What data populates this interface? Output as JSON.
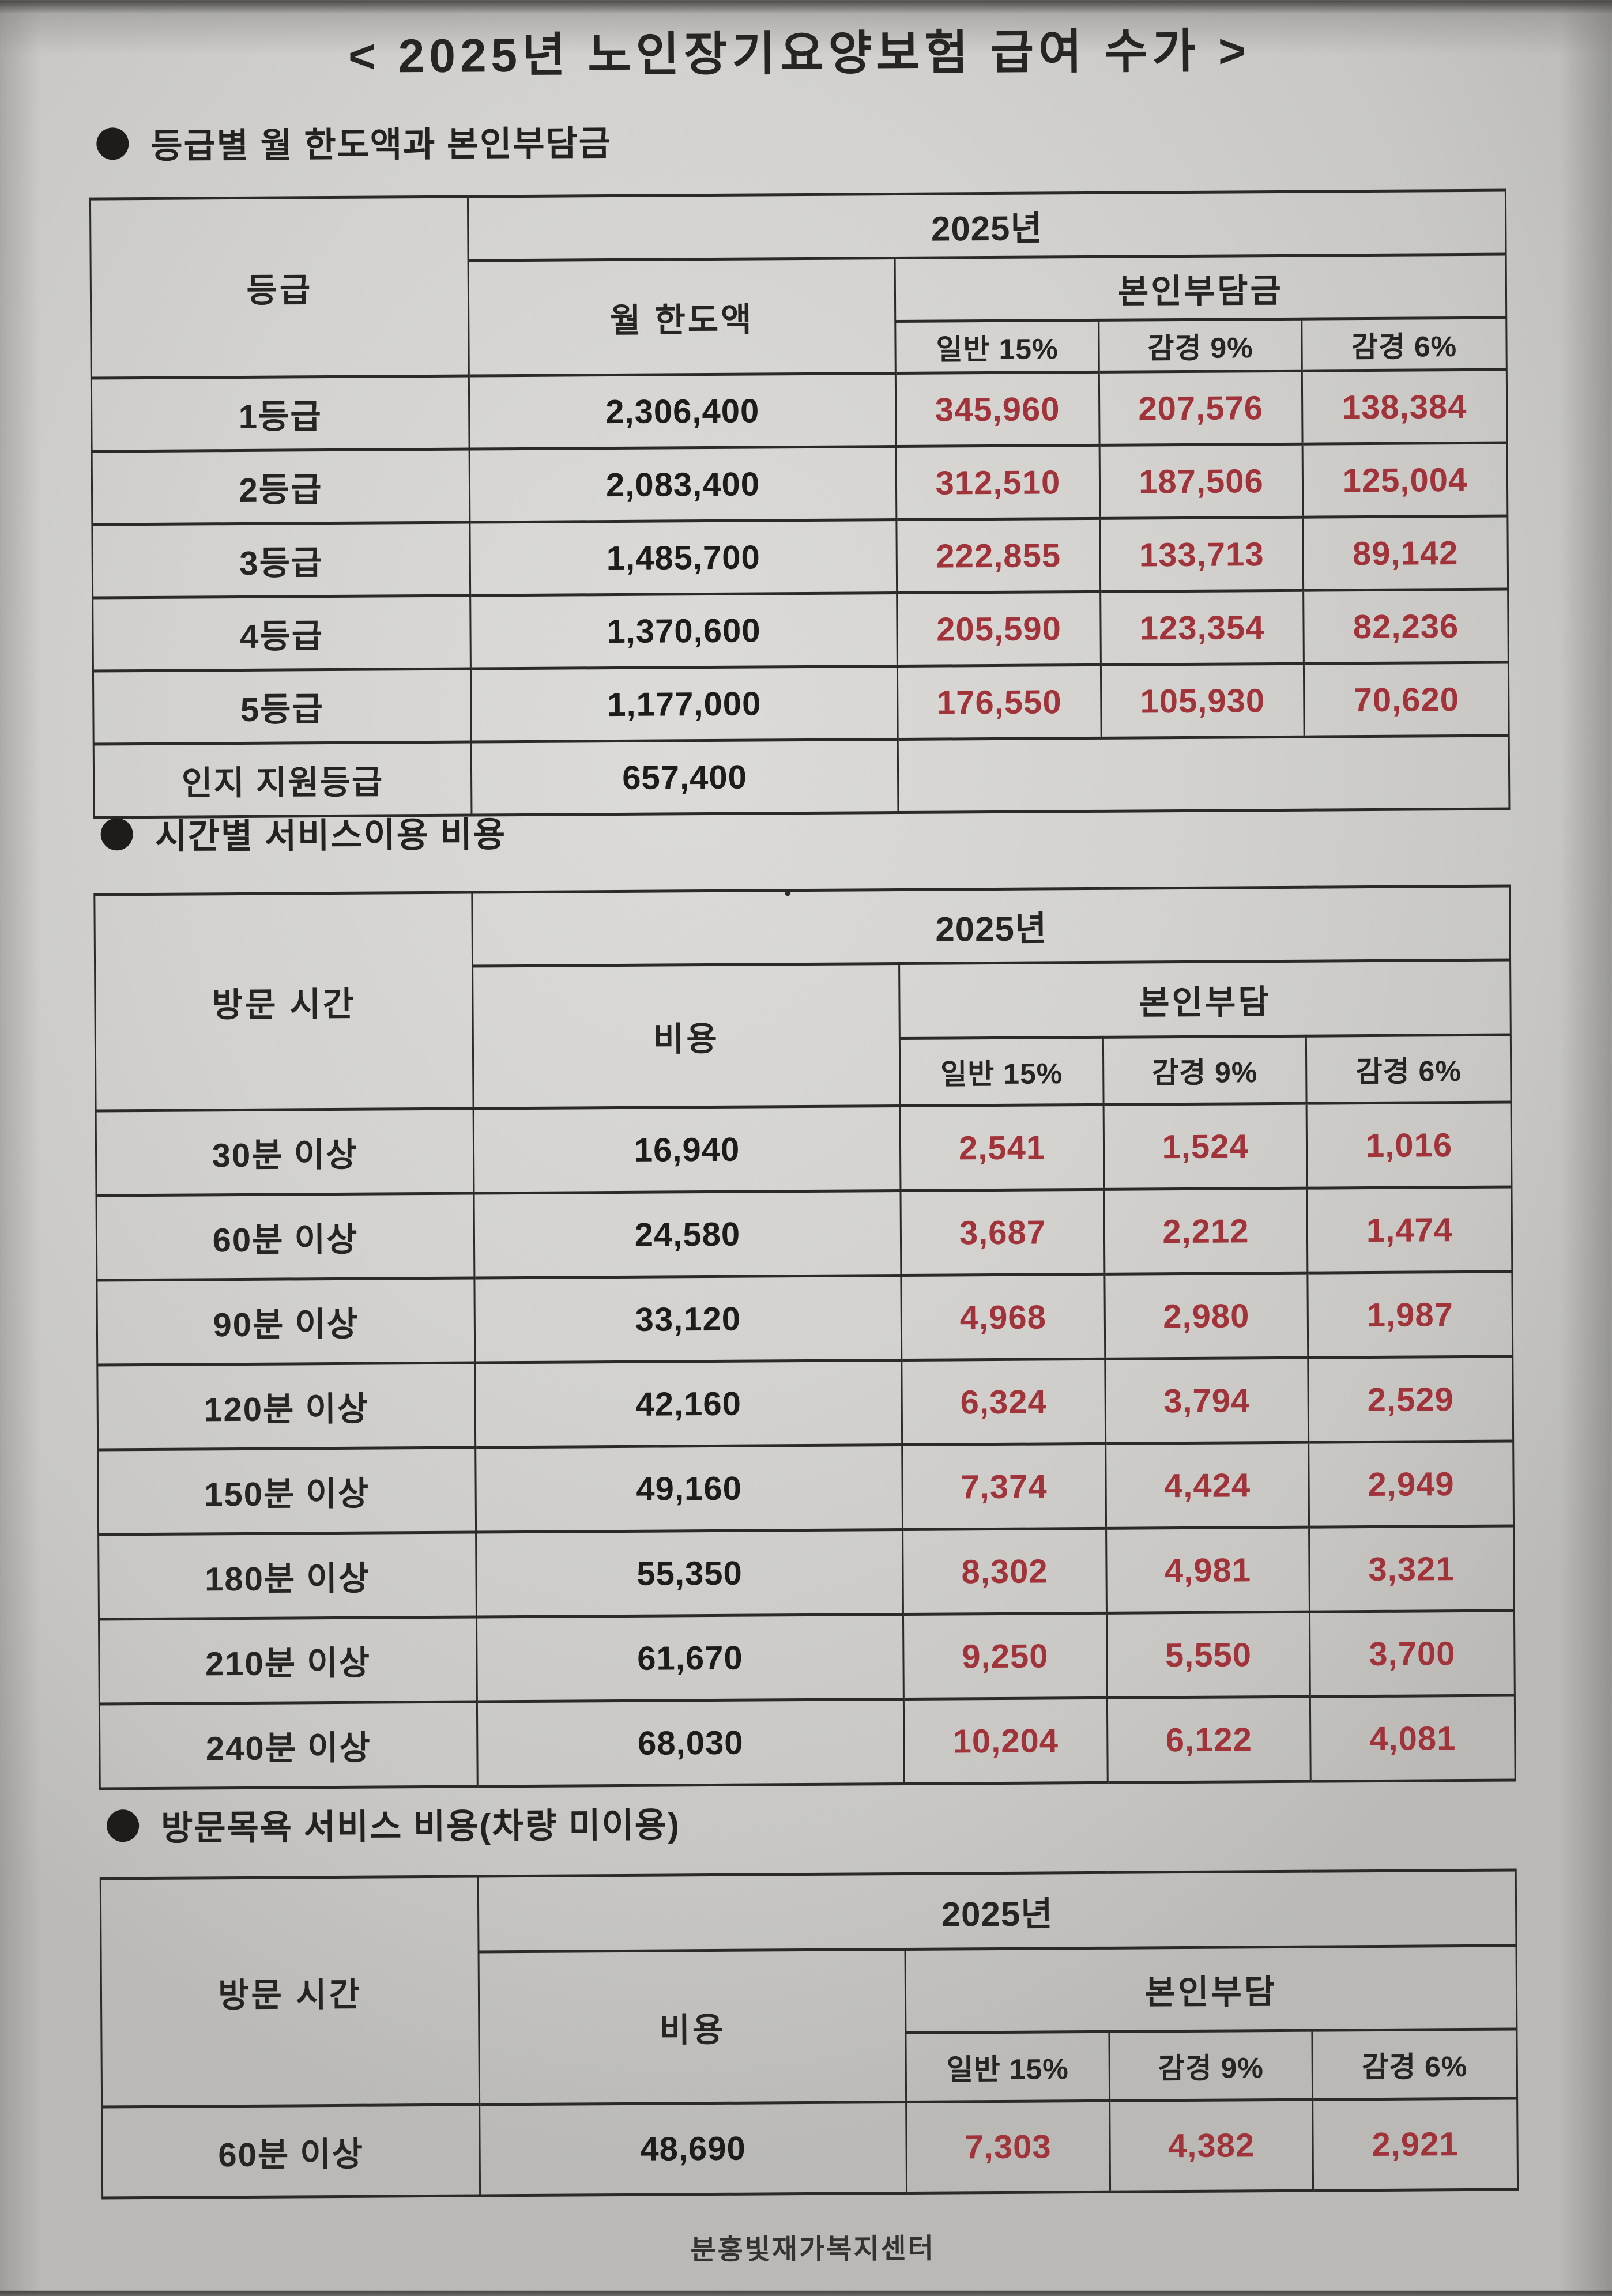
{
  "page": {
    "title": "< 2025년 노인장기요양보험 급여 수가 >",
    "footer": "분홍빛재가복지센터"
  },
  "colors": {
    "accent_red": "#a1343a",
    "ink": "#262522",
    "paper_gray": "#d3d2cf"
  },
  "icons": {
    "bullet": "●"
  },
  "sections": [
    {
      "heading": "등급별 월 한도액과 본인부담금",
      "table": {
        "col1_header": "등급",
        "year_header": "2025년",
        "amount_header": "월 한도액",
        "copay_header": "본인부담금",
        "copay_cols": [
          "일반 15%",
          "감경 9%",
          "감경 6%"
        ],
        "rows": [
          {
            "label": "1등급",
            "amount": "2,306,400",
            "copay": [
              "345,960",
              "207,576",
              "138,384"
            ]
          },
          {
            "label": "2등급",
            "amount": "2,083,400",
            "copay": [
              "312,510",
              "187,506",
              "125,004"
            ]
          },
          {
            "label": "3등급",
            "amount": "1,485,700",
            "copay": [
              "222,855",
              "133,713",
              "89,142"
            ]
          },
          {
            "label": "4등급",
            "amount": "1,370,600",
            "copay": [
              "205,590",
              "123,354",
              "82,236"
            ]
          },
          {
            "label": "5등급",
            "amount": "1,177,000",
            "copay": [
              "176,550",
              "105,930",
              "70,620"
            ]
          },
          {
            "label": "인지 지원등급",
            "amount": "657,400",
            "copay": null
          }
        ]
      }
    },
    {
      "heading": "시간별 서비스이용 비용",
      "table": {
        "col1_header": "방문 시간",
        "year_header": "2025년",
        "amount_header": "비용",
        "copay_header": "본인부담",
        "copay_cols": [
          "일반 15%",
          "감경 9%",
          "감경 6%"
        ],
        "rows": [
          {
            "label": "30분 이상",
            "amount": "16,940",
            "copay": [
              "2,541",
              "1,524",
              "1,016"
            ]
          },
          {
            "label": "60분 이상",
            "amount": "24,580",
            "copay": [
              "3,687",
              "2,212",
              "1,474"
            ]
          },
          {
            "label": "90분 이상",
            "amount": "33,120",
            "copay": [
              "4,968",
              "2,980",
              "1,987"
            ]
          },
          {
            "label": "120분 이상",
            "amount": "42,160",
            "copay": [
              "6,324",
              "3,794",
              "2,529"
            ]
          },
          {
            "label": "150분 이상",
            "amount": "49,160",
            "copay": [
              "7,374",
              "4,424",
              "2,949"
            ]
          },
          {
            "label": "180분 이상",
            "amount": "55,350",
            "copay": [
              "8,302",
              "4,981",
              "3,321"
            ]
          },
          {
            "label": "210분 이상",
            "amount": "61,670",
            "copay": [
              "9,250",
              "5,550",
              "3,700"
            ]
          },
          {
            "label": "240분 이상",
            "amount": "68,030",
            "copay": [
              "10,204",
              "6,122",
              "4,081"
            ]
          }
        ]
      }
    },
    {
      "heading": "방문목욕 서비스 비용(차량 미이용)",
      "table": {
        "col1_header": "방문 시간",
        "year_header": "2025년",
        "amount_header": "비용",
        "copay_header": "본인부담",
        "copay_cols": [
          "일반 15%",
          "감경 9%",
          "감경 6%"
        ],
        "rows": [
          {
            "label": "60분 이상",
            "amount": "48,690",
            "copay": [
              "7,303",
              "4,382",
              "2,921"
            ]
          }
        ]
      }
    }
  ]
}
